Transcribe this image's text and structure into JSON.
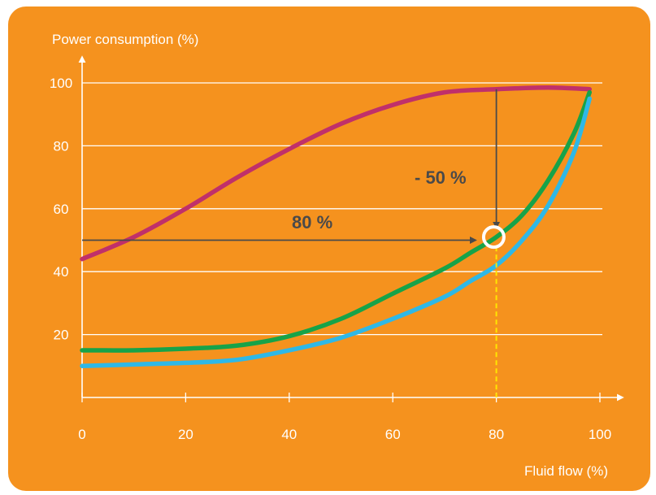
{
  "chart_data": {
    "type": "line",
    "ylabel": "Power consumption (%)",
    "xlabel": "Fluid flow (%)",
    "xlim": [
      0,
      100
    ],
    "ylim": [
      0,
      100
    ],
    "xticks": [
      0,
      20,
      40,
      60,
      80,
      100
    ],
    "yticks": [
      20,
      40,
      60,
      80,
      100
    ],
    "grid": true,
    "series": [
      {
        "color": "#c0306a",
        "x": [
          0,
          10,
          20,
          30,
          40,
          50,
          60,
          70,
          80,
          90,
          98
        ],
        "y": [
          44,
          51,
          60,
          70,
          79,
          87,
          93,
          97,
          98,
          98.5,
          98
        ]
      },
      {
        "color": "#17a349",
        "x": [
          0,
          10,
          20,
          30,
          40,
          50,
          60,
          70,
          75,
          80,
          85,
          90,
          95,
          98
        ],
        "y": [
          15,
          15,
          15.5,
          16.5,
          19.5,
          25,
          33,
          41,
          46,
          51,
          58,
          69,
          84,
          97
        ]
      },
      {
        "color": "#2fb8e6",
        "x": [
          0,
          10,
          20,
          30,
          40,
          50,
          60,
          70,
          75,
          80,
          85,
          90,
          95,
          98
        ],
        "y": [
          10,
          10.5,
          11,
          12,
          15,
          19,
          25,
          32,
          37,
          42,
          50,
          61,
          78,
          95
        ]
      }
    ],
    "annotations": {
      "reduction_label": "- 50 %",
      "flow_label": "80 %",
      "operating_point": {
        "x": 79.5,
        "y": 51
      },
      "reduction_arrow": {
        "x": 80,
        "y_from": 98,
        "y_to": 54
      },
      "flow_arrow": {
        "x_from": 0,
        "x_to": 76,
        "y": 50
      },
      "dashed_drop": {
        "x": 80,
        "y_from": 48,
        "y_to": 0
      }
    },
    "colors": {
      "background": "#f5921e",
      "grid": "#ffffff",
      "annotation": "#4a4a4a",
      "dashed": "#ffe600"
    }
  }
}
